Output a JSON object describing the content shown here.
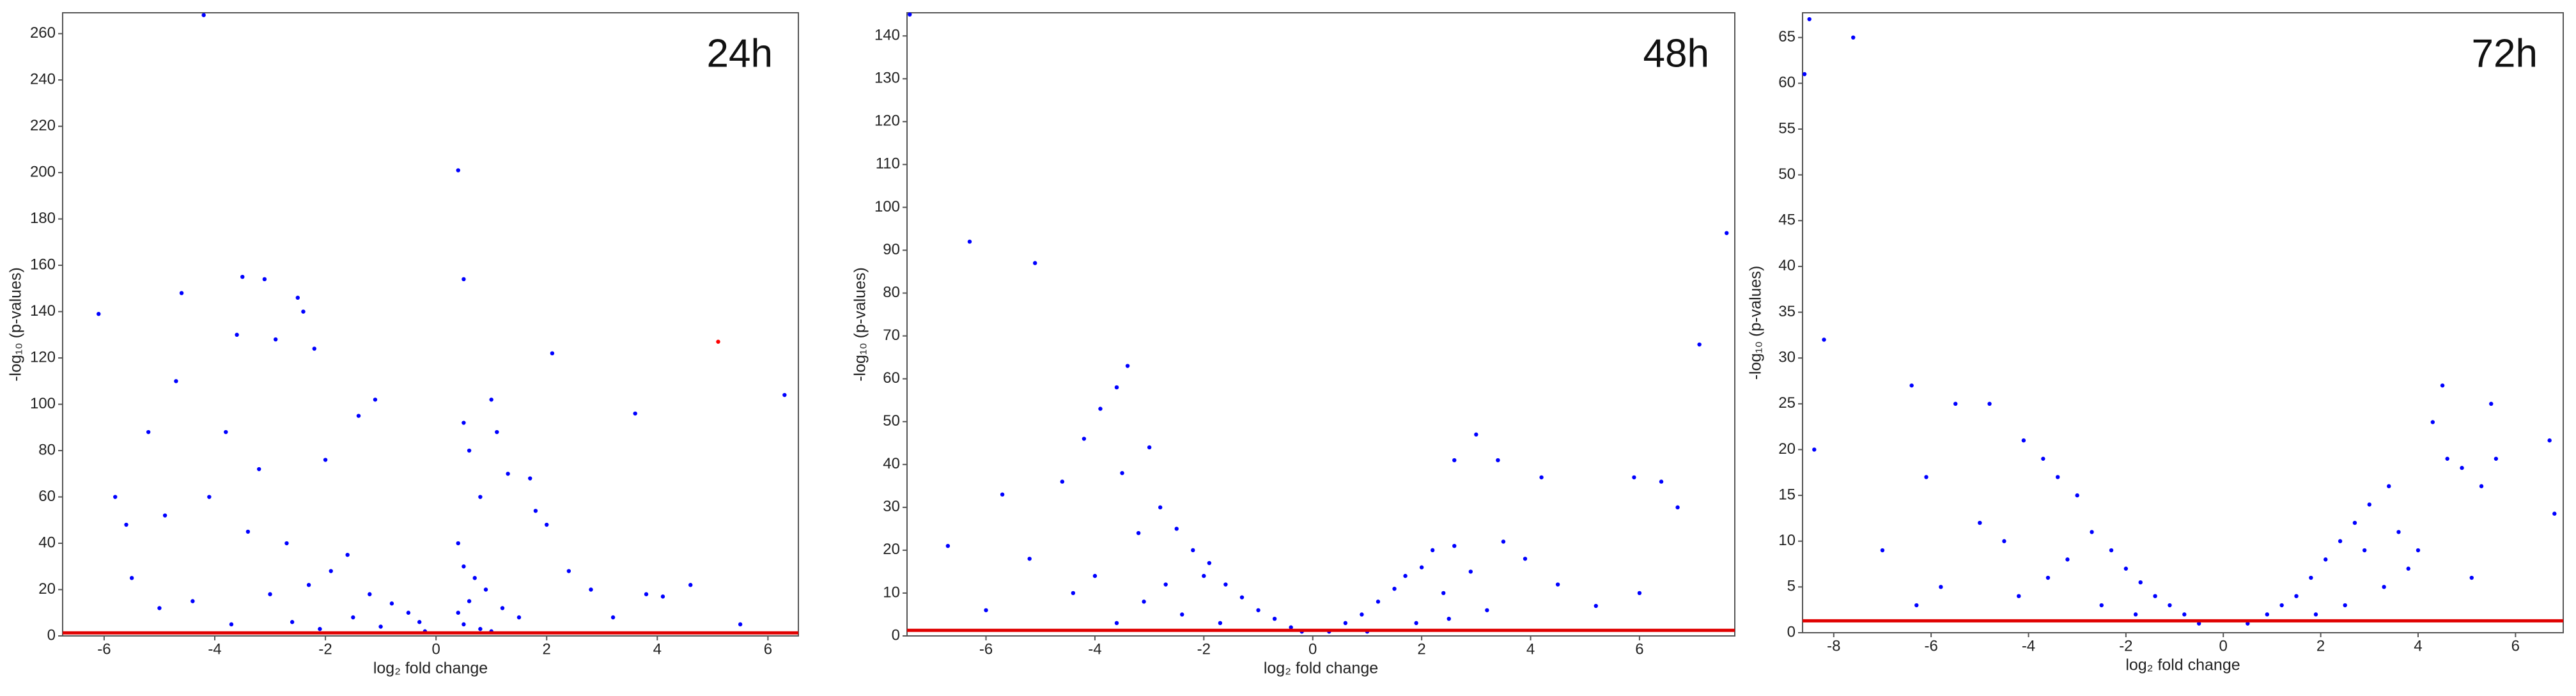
{
  "chart_data": [
    {
      "type": "scatter",
      "title": "24h",
      "xlabel": "log₂ fold change",
      "ylabel": "-log₁₀ (p-values)",
      "xlim": [
        -6.75,
        6.55
      ],
      "ylim": [
        0,
        269
      ],
      "xticks": [
        -6,
        -4,
        -2,
        0,
        2,
        4,
        6
      ],
      "yticks": [
        0,
        20,
        40,
        60,
        80,
        100,
        120,
        140,
        160,
        180,
        200,
        220,
        240,
        260
      ],
      "hline": 1.3,
      "hline_color": "#e00000",
      "series": [
        {
          "color": "#0000ff",
          "x": [
            -4.2,
            -6.1,
            -3.5,
            -3.1,
            -4.6,
            -2.5,
            -2.4,
            -3.6,
            -2.2,
            -2.9,
            -4.7,
            -5.2,
            -3.8,
            -1.1,
            -1.4,
            -2.0,
            -3.2,
            -4.1,
            -5.8,
            -5.6,
            -4.9,
            -3.4,
            -2.7,
            -1.6,
            -1.9,
            -2.3,
            -1.2,
            -0.8,
            -0.5,
            -3.0,
            -4.4,
            -5.5,
            -5.0,
            -1.5,
            -2.6,
            -3.7,
            -0.3,
            -1.0,
            -2.1,
            0.4,
            0.5,
            0.5,
            0.6,
            0.8,
            1.0,
            1.1,
            1.3,
            1.7,
            1.8,
            0.4,
            0.5,
            0.7,
            0.9,
            0.6,
            0.4,
            1.2,
            1.5,
            2.1,
            2.0,
            2.4,
            2.8,
            3.6,
            3.8,
            4.1,
            4.6,
            6.3,
            3.2,
            0.5,
            0.8,
            1.0,
            -0.2,
            5.5
          ],
          "y": [
            268,
            139,
            155,
            154,
            148,
            146,
            140,
            130,
            124,
            128,
            110,
            88,
            88,
            102,
            95,
            76,
            72,
            60,
            60,
            48,
            52,
            45,
            40,
            35,
            28,
            22,
            18,
            14,
            10,
            18,
            15,
            25,
            12,
            8,
            6,
            5,
            6,
            4,
            3,
            201,
            154,
            92,
            80,
            60,
            102,
            88,
            70,
            68,
            54,
            40,
            30,
            25,
            20,
            15,
            10,
            12,
            8,
            122,
            48,
            28,
            20,
            96,
            18,
            17,
            22,
            104,
            8,
            5,
            3,
            2,
            2,
            5
          ]
        },
        {
          "color": "#ff0000",
          "x": [
            5.1
          ],
          "y": [
            127
          ]
        }
      ]
    },
    {
      "type": "scatter",
      "title": "48h",
      "xlabel": "log₂ fold change",
      "ylabel": "-log₁₀ (p-values)",
      "xlim": [
        -7.45,
        7.75
      ],
      "ylim": [
        0,
        145.4
      ],
      "xticks": [
        -6,
        -4,
        -2,
        0,
        2,
        4,
        6
      ],
      "yticks": [
        0,
        10,
        20,
        30,
        40,
        50,
        60,
        70,
        80,
        90,
        100,
        110,
        120,
        130,
        140
      ],
      "hline": 1.3,
      "hline_color": "#e00000",
      "series": [
        {
          "color": "#0000ff",
          "x": [
            -7.4,
            -6.3,
            -5.1,
            -3.4,
            -3.6,
            -3.9,
            -4.2,
            -3.0,
            -3.5,
            -4.6,
            -5.7,
            -6.7,
            -2.8,
            -2.5,
            -3.2,
            -2.2,
            -1.9,
            -2.0,
            -1.6,
            -1.3,
            -1.0,
            -0.7,
            -0.4,
            -0.2,
            -2.7,
            -3.1,
            -4.0,
            -4.4,
            -5.2,
            -6.0,
            -2.4,
            -1.7,
            -3.6,
            7.6,
            7.1,
            3.0,
            3.4,
            2.6,
            4.2,
            5.9,
            6.4,
            6.7,
            2.6,
            2.2,
            2.0,
            1.7,
            1.5,
            1.2,
            0.9,
            0.6,
            0.3,
            2.4,
            2.9,
            3.5,
            3.9,
            4.5,
            3.2,
            2.5,
            5.2,
            6.0,
            1.9,
            1.0
          ],
          "y": [
            145,
            92,
            87,
            63,
            58,
            53,
            46,
            44,
            38,
            36,
            33,
            21,
            30,
            25,
            24,
            20,
            17,
            14,
            12,
            9,
            6,
            4,
            2,
            1,
            12,
            8,
            14,
            10,
            18,
            6,
            5,
            3,
            3,
            94,
            68,
            47,
            41,
            41,
            37,
            37,
            36,
            30,
            21,
            20,
            16,
            14,
            11,
            8,
            5,
            3,
            1,
            10,
            15,
            22,
            18,
            12,
            6,
            4,
            7,
            10,
            3,
            1
          ]
        }
      ]
    },
    {
      "type": "scatter",
      "title": "72h",
      "xlabel": "log₂ fold change",
      "ylabel": "-log₁₀ (p-values)",
      "xlim": [
        -8.64,
        6.98
      ],
      "ylim": [
        0,
        67.7
      ],
      "xticks": [
        -8,
        -6,
        -4,
        -2,
        0,
        2,
        4,
        6
      ],
      "yticks": [
        0,
        5,
        10,
        15,
        20,
        25,
        30,
        35,
        40,
        45,
        50,
        55,
        60,
        65
      ],
      "hline": 1.3,
      "hline_color": "#e00000",
      "series": [
        {
          "color": "#0000ff",
          "x": [
            -8.5,
            -7.6,
            -8.6,
            -8.2,
            -8.4,
            -6.4,
            -5.5,
            -4.8,
            -4.1,
            -3.7,
            -3.4,
            -3.0,
            -6.1,
            -7.0,
            -5.0,
            -4.5,
            -2.7,
            -2.3,
            -2.0,
            -1.7,
            -1.4,
            -1.1,
            -0.8,
            -0.5,
            -3.6,
            -3.2,
            -4.2,
            -5.8,
            -2.5,
            -1.8,
            -6.3,
            4.5,
            4.3,
            4.6,
            5.5,
            6.7,
            5.6,
            5.3,
            6.8,
            5.1,
            3.4,
            3.0,
            2.7,
            2.4,
            2.1,
            1.8,
            1.5,
            1.2,
            0.9,
            0.5,
            2.9,
            3.6,
            4.0,
            3.3,
            2.5,
            4.9,
            3.8,
            1.9
          ],
          "y": [
            67,
            65,
            61,
            32,
            20,
            27,
            25,
            25,
            21,
            19,
            17,
            15,
            17,
            9,
            12,
            10,
            11,
            9,
            7,
            5.5,
            4,
            3,
            2,
            1,
            6,
            8,
            4,
            5,
            3,
            2,
            3,
            27,
            23,
            19,
            25,
            21,
            19,
            16,
            13,
            6,
            16,
            14,
            12,
            10,
            8,
            6,
            4,
            3,
            2,
            1,
            9,
            11,
            9,
            5,
            3,
            18,
            7,
            2
          ]
        }
      ]
    }
  ]
}
